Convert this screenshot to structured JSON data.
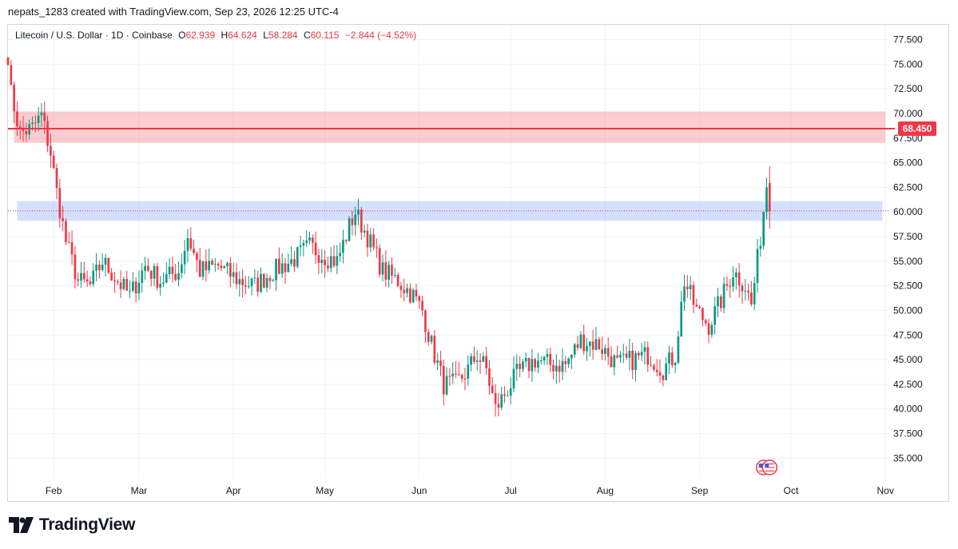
{
  "header": {
    "attribution": "nepats_1283 created with TradingView.com, Sep 23, 2026 12:25 UTC-4"
  },
  "legend": {
    "symbol": "Litecoin / U.S. Dollar · 1D · Coinbase",
    "open_label": "O",
    "open": "62.939",
    "high_label": "H",
    "high": "64.624",
    "low_label": "L",
    "low": "58.284",
    "close_label": "C",
    "close": "60.115",
    "change": "−2.844 (−4.52%)"
  },
  "footer": {
    "brand": "TradingView"
  },
  "colors": {
    "up": "#089981",
    "down": "#f23645",
    "resistance_zone": "#f2364540",
    "support_zone": "#2962ff33",
    "price_line": "#f23645",
    "grid": "#f0f3fa"
  },
  "chart_data": {
    "type": "candlestick",
    "symbol": "Litecoin / U.S. Dollar",
    "interval": "1D",
    "exchange": "Coinbase",
    "x_ticks": [
      "Feb",
      "Mar",
      "Apr",
      "May",
      "Jun",
      "Jul",
      "Aug",
      "Sep",
      "Oct",
      "Nov"
    ],
    "y_ticks": [
      "35.000",
      "37.500",
      "40.000",
      "42.500",
      "45.000",
      "47.500",
      "50.000",
      "52.500",
      "55.000",
      "57.500",
      "60.000",
      "62.500",
      "65.000",
      "67.500",
      "70.000",
      "72.500",
      "75.000",
      "77.500"
    ],
    "ylim": [
      33.0,
      79.0
    ],
    "xlim": [
      "2026-01-17",
      "2026-11-02"
    ],
    "grid": true,
    "horizontal_line": {
      "value": 68.45,
      "label": "68.450"
    },
    "zones": [
      {
        "name": "resistance",
        "low": 67.0,
        "high": 70.2,
        "from": "2026-01-19",
        "to": "2026-11-01"
      },
      {
        "name": "support",
        "low": 59.1,
        "high": 61.1,
        "from": "2026-01-20",
        "to": "2026-10-31"
      }
    ],
    "last_close_line": 60.115,
    "events": [
      {
        "date": "2026-09-22",
        "icon": "us-flag-icon"
      },
      {
        "date": "2026-09-24",
        "icon": "us-flag-icon"
      }
    ],
    "anchors": [
      [
        "2026-01-17",
        76.0
      ],
      [
        "2026-01-18",
        72.0
      ],
      [
        "2026-01-21",
        68.0
      ],
      [
        "2026-01-25",
        68.5
      ],
      [
        "2026-01-28",
        69.8
      ],
      [
        "2026-01-31",
        66.0
      ],
      [
        "2026-02-02",
        62.0
      ],
      [
        "2026-02-05",
        57.0
      ],
      [
        "2026-02-09",
        53.0
      ],
      [
        "2026-02-13",
        52.5
      ],
      [
        "2026-02-17",
        55.0
      ],
      [
        "2026-02-22",
        53.0
      ],
      [
        "2026-02-26",
        51.5
      ],
      [
        "2026-03-03",
        54.5
      ],
      [
        "2026-03-08",
        53.0
      ],
      [
        "2026-03-14",
        54.0
      ],
      [
        "2026-03-17",
        57.5
      ],
      [
        "2026-03-21",
        54.0
      ],
      [
        "2026-03-27",
        54.5
      ],
      [
        "2026-04-03",
        53.0
      ],
      [
        "2026-04-08",
        52.5
      ],
      [
        "2026-04-14",
        54.0
      ],
      [
        "2026-04-20",
        55.0
      ],
      [
        "2026-04-26",
        56.5
      ],
      [
        "2026-05-01",
        55.5
      ],
      [
        "2026-05-05",
        55.0
      ],
      [
        "2026-05-09",
        58.5
      ],
      [
        "2026-05-11",
        60.0
      ],
      [
        "2026-05-15",
        57.5
      ],
      [
        "2026-05-20",
        54.0
      ],
      [
        "2026-05-25",
        53.0
      ],
      [
        "2026-05-30",
        51.5
      ],
      [
        "2026-06-02",
        50.0
      ],
      [
        "2026-06-05",
        46.5
      ],
      [
        "2026-06-09",
        42.5
      ],
      [
        "2026-06-13",
        42.5
      ],
      [
        "2026-06-17",
        44.0
      ],
      [
        "2026-06-20",
        45.5
      ],
      [
        "2026-06-23",
        44.0
      ],
      [
        "2026-06-26",
        40.0
      ],
      [
        "2026-06-29",
        41.5
      ],
      [
        "2026-07-03",
        43.5
      ],
      [
        "2026-07-09",
        45.0
      ],
      [
        "2026-07-14",
        44.5
      ],
      [
        "2026-07-19",
        44.5
      ],
      [
        "2026-07-24",
        47.0
      ],
      [
        "2026-07-30",
        46.5
      ],
      [
        "2026-08-05",
        44.5
      ],
      [
        "2026-08-10",
        45.0
      ],
      [
        "2026-08-15",
        45.5
      ],
      [
        "2026-08-20",
        44.0
      ],
      [
        "2026-08-24",
        45.5
      ],
      [
        "2026-08-27",
        53.0
      ],
      [
        "2026-08-31",
        50.0
      ],
      [
        "2026-09-04",
        48.5
      ],
      [
        "2026-09-08",
        51.0
      ],
      [
        "2026-09-12",
        54.0
      ],
      [
        "2026-09-16",
        52.5
      ],
      [
        "2026-09-18",
        50.5
      ],
      [
        "2026-09-21",
        57.5
      ],
      [
        "2026-09-23",
        62.9
      ],
      [
        "2026-09-24",
        60.115
      ]
    ],
    "last_candle": {
      "date": "2026-09-24",
      "open": 62.939,
      "high": 64.624,
      "low": 58.284,
      "close": 60.115
    }
  }
}
